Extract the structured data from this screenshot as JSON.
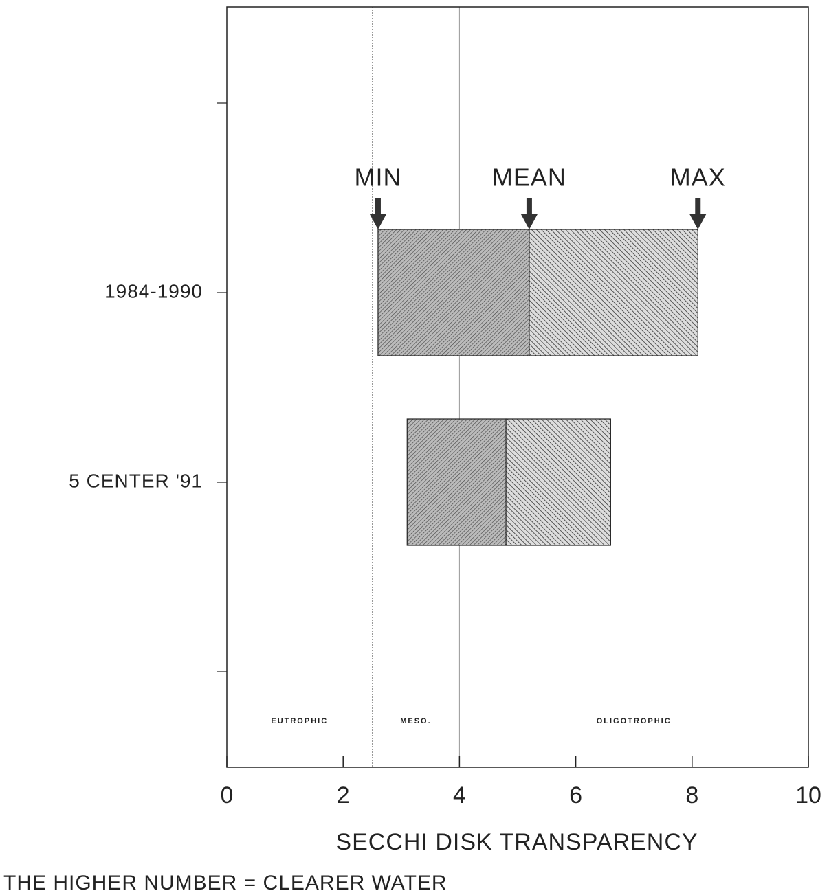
{
  "chart_data": {
    "type": "range_bar",
    "categories": [
      null,
      "1984-1990",
      "5 CENTER '91",
      null
    ],
    "series": [
      {
        "name": "MIN",
        "values": [
          null,
          2.6,
          3.1,
          null
        ]
      },
      {
        "name": "MEAN",
        "values": [
          null,
          5.2,
          4.8,
          null
        ]
      },
      {
        "name": "MAX",
        "values": [
          null,
          8.1,
          6.6,
          null
        ]
      }
    ],
    "xlabel": "SECCHI DISK TRANSPARENCY",
    "note": "THE HIGHER NUMBER = CLEARER WATER",
    "xlim": [
      0,
      10
    ],
    "xticks": [
      0,
      2,
      4,
      6,
      8,
      10
    ],
    "zones": [
      {
        "label": "EUTROPHIC",
        "range": [
          0,
          2.5
        ]
      },
      {
        "label": "MESO.",
        "range": [
          2.5,
          4
        ]
      },
      {
        "label": "OLIGOTROPHIC",
        "range": [
          4,
          10
        ]
      }
    ],
    "boundaries": [
      2.5,
      4
    ]
  }
}
